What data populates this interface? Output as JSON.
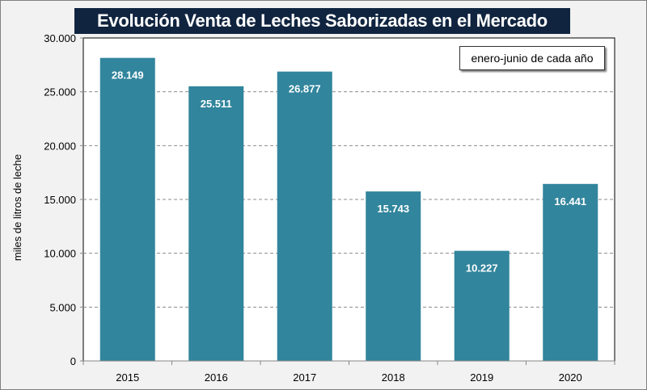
{
  "chart_data": {
    "type": "bar",
    "title": "Evolución Venta de Leches Saborizadas en el Mercado Interno",
    "annotation": "enero-junio de cada año",
    "xlabel": "",
    "ylabel": "miles de litros de leche",
    "categories": [
      "2015",
      "2016",
      "2017",
      "2018",
      "2019",
      "2020"
    ],
    "values": [
      28149,
      25511,
      26877,
      15743,
      10227,
      16441
    ],
    "data_labels": [
      "28.149",
      "25.511",
      "26.877",
      "15.743",
      "10.227",
      "16.441"
    ],
    "ylim": [
      0,
      30000
    ],
    "yticks": [
      0,
      5000,
      10000,
      15000,
      20000,
      25000,
      30000
    ],
    "ytick_labels": [
      "0",
      "5.000",
      "10.000",
      "15.000",
      "20.000",
      "25.000",
      "30.000"
    ],
    "grid": "horizontal dashed",
    "bar_color": "#31859c",
    "title_bg": "#10243f"
  }
}
